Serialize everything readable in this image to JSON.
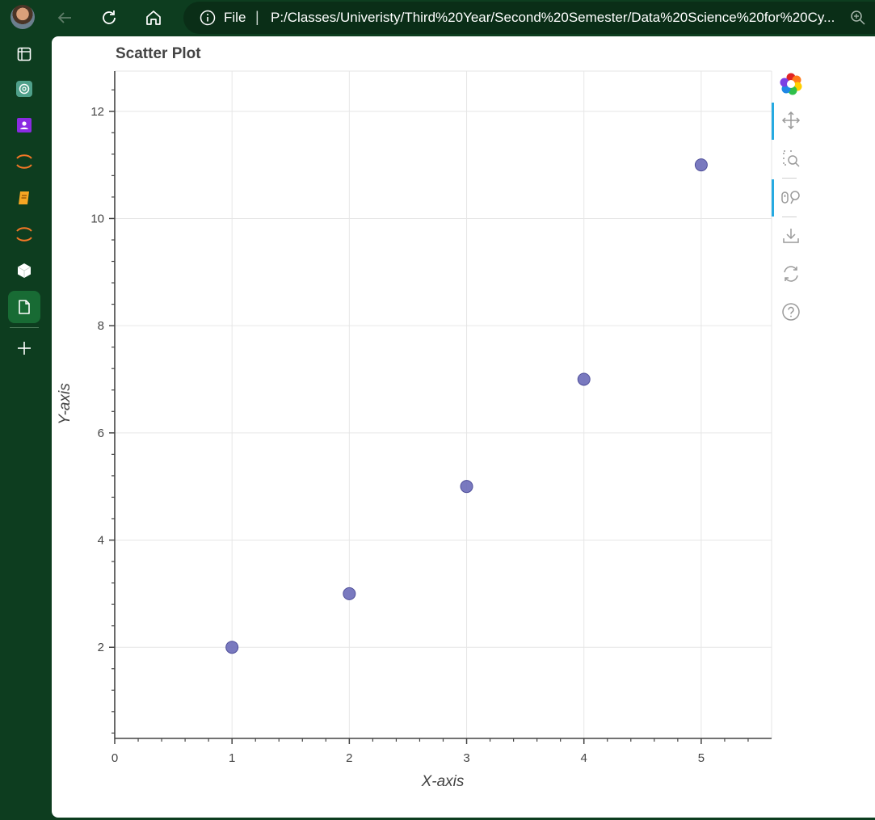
{
  "browser": {
    "address_scheme": "File",
    "url": "P:/Classes/Univeristy/Third%20Year/Second%20Semester/Data%20Science%20for%20Cy..."
  },
  "sidebar": {
    "items": [
      {
        "name": "tab-icon"
      },
      {
        "name": "chatgpt-icon"
      },
      {
        "name": "contacts-icon"
      },
      {
        "name": "jupyter-icon"
      },
      {
        "name": "notebook-icon"
      },
      {
        "name": "jupyter-icon"
      },
      {
        "name": "cube-icon"
      },
      {
        "name": "document-icon",
        "active": true
      }
    ],
    "add_label": "+"
  },
  "plot": {
    "title": "Scatter Plot",
    "toolbar": [
      "bokeh-logo-icon",
      "pan-icon",
      "box-zoom-icon",
      "wheel-zoom-icon",
      "save-icon",
      "reset-icon",
      "help-icon"
    ]
  },
  "chart_data": {
    "type": "scatter",
    "title": "Scatter Plot",
    "xlabel": "X-axis",
    "ylabel": "Y-axis",
    "x": [
      1,
      2,
      3,
      4,
      5
    ],
    "y": [
      2,
      3,
      5,
      7,
      11
    ],
    "xlim": [
      0,
      5.6
    ],
    "ylim": [
      0.3,
      12.75
    ],
    "xticks": [
      0,
      1,
      2,
      3,
      4,
      5
    ],
    "yticks": [
      2,
      4,
      6,
      8,
      10,
      12
    ],
    "marker_color": "#6a6ab8",
    "grid": true
  }
}
